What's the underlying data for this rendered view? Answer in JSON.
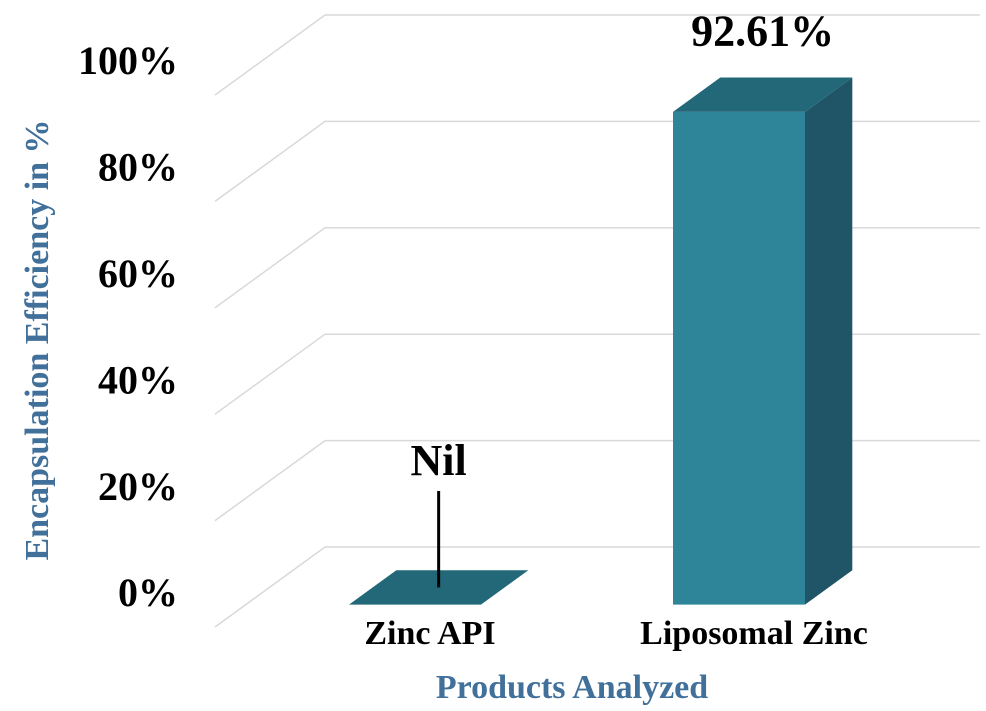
{
  "chart_data": {
    "type": "bar3d",
    "categories": [
      "Zinc API",
      "Liposomal Zinc"
    ],
    "values": [
      0,
      92.61
    ],
    "value_labels": [
      "Nil",
      "92.61%"
    ],
    "color": "#2e8599",
    "ylim": [
      0,
      100
    ],
    "yticks": [
      {
        "value": 0,
        "label": "0%"
      },
      {
        "value": 20,
        "label": "20%"
      },
      {
        "value": 40,
        "label": "40%"
      },
      {
        "value": 60,
        "label": "60%"
      },
      {
        "value": 80,
        "label": "80%"
      },
      {
        "value": 100,
        "label": "100%"
      }
    ],
    "grid": true,
    "y_axis_label": "Encapsulation Efficiency in %",
    "x_axis_label": "Products Analyzed"
  }
}
